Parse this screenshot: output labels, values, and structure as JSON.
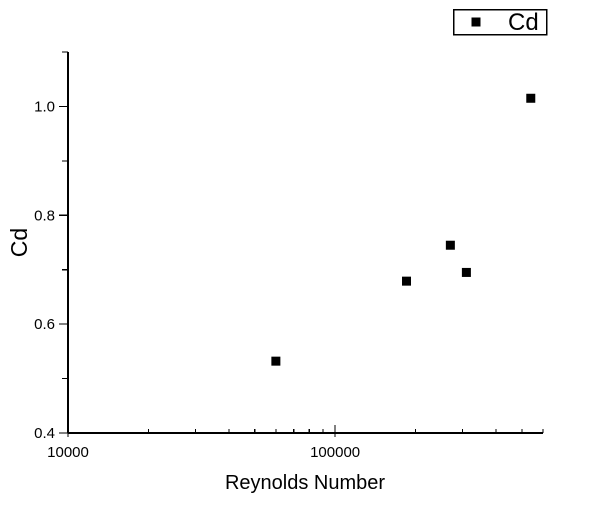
{
  "window": {
    "background": "#ffffff"
  },
  "chart_data": {
    "type": "scatter",
    "title": "",
    "xlabel": "Reynolds Number",
    "ylabel": "Cd",
    "x_scale": "log",
    "y_scale": "linear",
    "xlim": [
      10000,
      600000
    ],
    "ylim": [
      0.4,
      1.1
    ],
    "grid": false,
    "x_major_ticks": [
      {
        "value": 10000,
        "label": "10000"
      },
      {
        "value": 100000,
        "label": "100000"
      }
    ],
    "x_minor_ticks": [
      20000,
      30000,
      40000,
      50000,
      60000,
      70000,
      80000,
      90000,
      200000,
      300000,
      400000,
      500000,
      600000
    ],
    "y_major_ticks": [
      {
        "value": 0.4,
        "label": "0.4"
      },
      {
        "value": 0.6,
        "label": "0.6"
      },
      {
        "value": 0.8,
        "label": "0.8"
      },
      {
        "value": 1.0,
        "label": "1.0"
      }
    ],
    "y_minor_ticks": [
      0.5,
      0.7,
      0.9,
      1.1
    ],
    "legend": {
      "position": "top-right",
      "entries": [
        {
          "label": "Cd",
          "marker": "filled-square",
          "color": "#000000"
        }
      ]
    },
    "series": [
      {
        "name": "Cd",
        "marker": "filled-square",
        "marker_size": 9,
        "color": "#000000",
        "points": [
          {
            "x": 60000,
            "y": 0.532
          },
          {
            "x": 185000,
            "y": 0.679
          },
          {
            "x": 270000,
            "y": 0.745
          },
          {
            "x": 310000,
            "y": 0.695
          },
          {
            "x": 540000,
            "y": 1.015
          }
        ]
      }
    ],
    "colors": {
      "axis": "#000000",
      "text": "#000000",
      "marker": "#000000",
      "background": "#ffffff"
    }
  }
}
